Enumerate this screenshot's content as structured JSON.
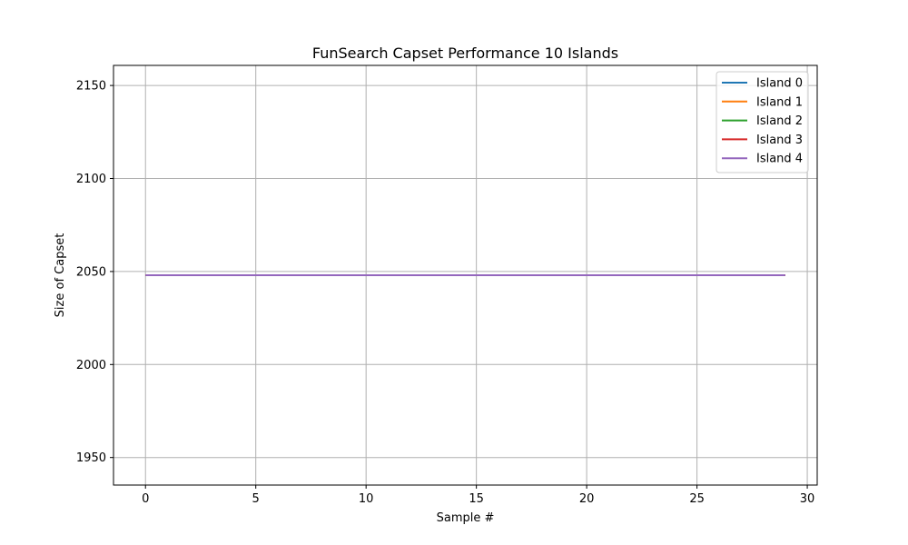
{
  "chart_data": {
    "type": "line",
    "title": "FunSearch Capset Performance 10 Islands",
    "xlabel": "Sample #",
    "ylabel": "Size of Capset",
    "xlim": [
      -1.45,
      30.45
    ],
    "ylim": [
      1935.2,
      2160.8
    ],
    "xticks": [
      0,
      5,
      10,
      15,
      20,
      25,
      30
    ],
    "yticks": [
      1950,
      2000,
      2050,
      2100,
      2150
    ],
    "grid": true,
    "legend_position": "top-right",
    "series": [
      {
        "name": "Island 0",
        "color": "#1f77b4",
        "x": [
          0,
          29
        ],
        "values": [
          2048,
          2048
        ]
      },
      {
        "name": "Island 1",
        "color": "#ff7f0e",
        "x": [
          0,
          29
        ],
        "values": [
          2048,
          2048
        ]
      },
      {
        "name": "Island 2",
        "color": "#2ca02c",
        "x": [
          0,
          29
        ],
        "values": [
          2048,
          2048
        ]
      },
      {
        "name": "Island 3",
        "color": "#d62728",
        "x": [
          0,
          29
        ],
        "values": [
          2048,
          2048
        ]
      },
      {
        "name": "Island 4",
        "color": "#9467bd",
        "x": [
          0,
          29
        ],
        "values": [
          2048,
          2048
        ]
      }
    ]
  }
}
